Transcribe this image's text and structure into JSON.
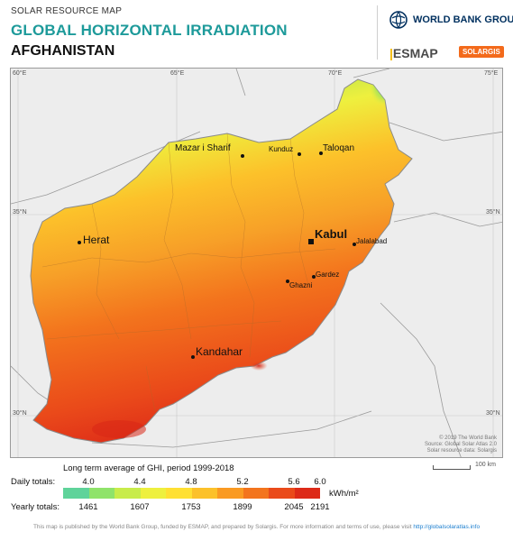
{
  "header": {
    "kicker": "SOLAR RESOURCE MAP",
    "title": "GLOBAL HORIZONTAL IRRADIATION",
    "country": "AFGHANISTAN",
    "wbg_label": "WORLD BANK GROUP",
    "esmap_label": "ESMAP",
    "solargis_label": "SOLARGIS"
  },
  "map": {
    "graticule": {
      "top": [
        "60°E",
        "65°E",
        "70°E",
        "75°E"
      ],
      "left": [
        "35°N",
        "30°N"
      ],
      "right": [
        "35°N",
        "30°N"
      ]
    },
    "cities": {
      "kabul": "Kabul",
      "herat": "Herat",
      "kandahar": "Kandahar",
      "mazar": "Mazar i Sharif",
      "kunduz": "Kunduz",
      "taloqan": "Taloqan",
      "jalalabad": "Jalalabad",
      "gardez": "Gardez",
      "ghazni": "Ghazni"
    },
    "credits": [
      "© 2019 The World Bank",
      "Source: Global Solar Atlas 2.0",
      "Solar resource data: Solargis"
    ],
    "scale_label": "100 km"
  },
  "legend": {
    "title": "Long term average of GHI, period 1999-2018",
    "daily_label": "Daily totals:",
    "yearly_label": "Yearly totals:",
    "daily_ticks": [
      "4.0",
      "4.4",
      "4.8",
      "5.2",
      "5.6",
      "6.0"
    ],
    "yearly_ticks": [
      "1461",
      "1607",
      "1753",
      "1899",
      "2045",
      "2191"
    ],
    "unit": "kWh/m²",
    "colors": [
      "#5fd39a",
      "#8fe36a",
      "#c8ec4a",
      "#eef03e",
      "#ffe033",
      "#fcc12a",
      "#fa9a22",
      "#f3741d",
      "#ea4a1a",
      "#dd2a18"
    ]
  },
  "footer": {
    "text": "This map is published by the World Bank Group, funded by ESMAP, and prepared by Solargis. For more information and terms of use, please visit",
    "link": "http://globalsolaratlas.info"
  }
}
